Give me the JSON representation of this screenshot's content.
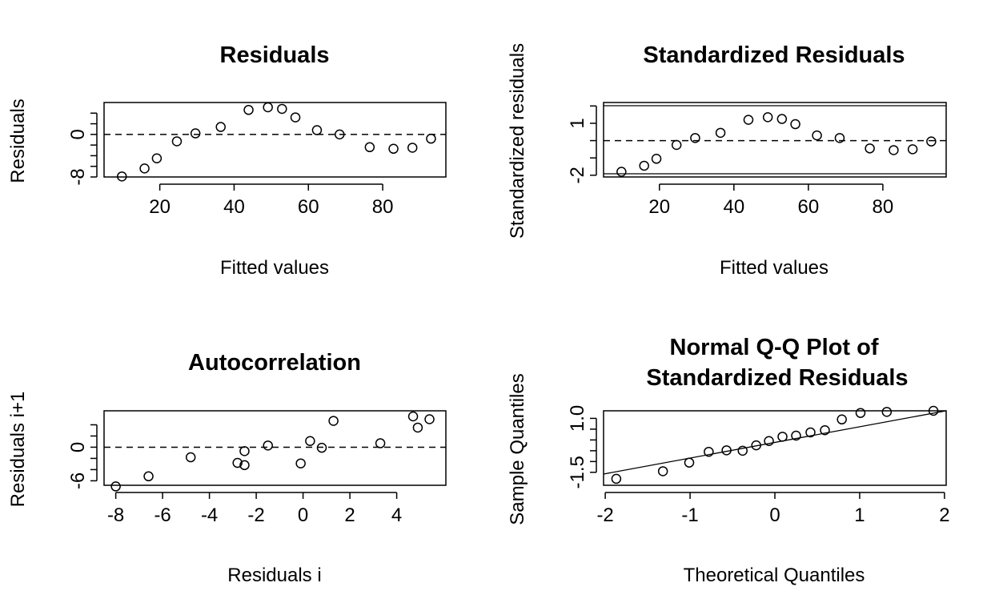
{
  "chart_data": [
    {
      "type": "scatter",
      "title": "Residuals",
      "xlabel": "Fitted values",
      "ylabel": "Residuals",
      "xlim": [
        5,
        97
      ],
      "ylim": [
        -8,
        6
      ],
      "xticks": [
        20,
        40,
        60,
        80
      ],
      "yticks": [
        -8,
        -6,
        -4,
        -2,
        0,
        2,
        4
      ],
      "ytick_labels": [
        "-8",
        "",
        "",
        "",
        "0",
        "",
        ""
      ],
      "reference_line": {
        "kind": "horizontal",
        "y": 0,
        "style": "dashed"
      },
      "x": [
        9.8,
        15.9,
        19.2,
        24.6,
        29.6,
        36.4,
        43.9,
        49.1,
        52.9,
        56.5,
        62.3,
        68.4,
        76.5,
        82.9,
        88.0,
        93.0
      ],
      "y": [
        -7.9,
        -6.4,
        -4.5,
        -1.3,
        0.2,
        1.4,
        4.6,
        5.1,
        4.8,
        3.2,
        0.8,
        0.0,
        -2.4,
        -2.7,
        -2.5,
        -0.8
      ]
    },
    {
      "type": "scatter",
      "title": "Standardized Residuals",
      "xlabel": "Fitted values",
      "ylabel": "Standardized residuals",
      "xlim": [
        5,
        97
      ],
      "ylim": [
        -2.1,
        2.2
      ],
      "xticks": [
        20,
        40,
        60,
        80
      ],
      "yticks": [
        -2,
        -1,
        0,
        1,
        2
      ],
      "ytick_labels": [
        "-2",
        "",
        "",
        "1",
        ""
      ],
      "reference_line": {
        "kind": "horizontal",
        "y": 0,
        "style": "dashed"
      },
      "x": [
        9.8,
        15.9,
        19.2,
        24.6,
        29.6,
        36.4,
        43.9,
        49.1,
        52.9,
        56.5,
        62.3,
        68.4,
        76.5,
        82.9,
        88.0,
        93.0
      ],
      "y": [
        -1.8,
        -1.45,
        -1.05,
        -0.25,
        0.15,
        0.45,
        1.2,
        1.35,
        1.25,
        0.95,
        0.3,
        0.15,
        -0.45,
        -0.55,
        -0.5,
        -0.05
      ]
    },
    {
      "type": "scatter",
      "title": "Autocorrelation",
      "xlabel": "Residuals i",
      "ylabel": "Residuals i+1",
      "xlim": [
        -8.5,
        6.1
      ],
      "ylim": [
        -6.8,
        6.5
      ],
      "xticks": [
        -8,
        -6,
        -4,
        -2,
        0,
        2,
        4
      ],
      "yticks": [
        -6,
        -4,
        -2,
        0,
        2,
        4
      ],
      "ytick_labels": [
        "-6",
        "",
        "",
        "0",
        "",
        ""
      ],
      "reference_line": {
        "kind": "horizontal",
        "y": 0,
        "style": "dashed"
      },
      "x": [
        -8.0,
        -6.6,
        -4.8,
        -2.8,
        -2.5,
        -2.5,
        -1.5,
        -0.1,
        0.3,
        0.8,
        1.3,
        3.3,
        4.7,
        4.9,
        5.4
      ],
      "y": [
        -7.0,
        -5.2,
        -1.8,
        -2.8,
        -3.2,
        -0.7,
        0.3,
        -2.9,
        1.1,
        -0.1,
        4.7,
        0.7,
        5.5,
        3.5,
        5.0
      ]
    },
    {
      "type": "scatter",
      "title": "Normal Q-Q Plot of\nStandardized Residuals",
      "xlabel": "Theoretical Quantiles",
      "ylabel": "Sample Quantiles",
      "xlim": [
        -2.02,
        2.02
      ],
      "ylim": [
        -2.1,
        1.35
      ],
      "xticks": [
        -2,
        -1,
        0,
        1,
        2
      ],
      "yticks": [
        -1.5,
        -1.0,
        -0.5,
        0.0,
        0.5,
        1.0
      ],
      "ytick_labels": [
        "-1.5",
        "",
        "",
        "",
        "",
        "1.0"
      ],
      "reference_line": {
        "kind": "qqline",
        "x1": -2.02,
        "y1": -1.58,
        "x2": 2.02,
        "y2": 1.35,
        "style": "solid"
      },
      "x": [
        -1.87,
        -1.32,
        -1.01,
        -0.78,
        -0.57,
        -0.38,
        -0.22,
        -0.07,
        0.09,
        0.25,
        0.42,
        0.59,
        0.79,
        1.01,
        1.32,
        1.87
      ],
      "y": [
        -1.8,
        -1.45,
        -1.05,
        -0.55,
        -0.48,
        -0.5,
        -0.25,
        -0.05,
        0.15,
        0.2,
        0.35,
        0.45,
        0.95,
        1.25,
        1.3,
        1.35
      ]
    }
  ]
}
